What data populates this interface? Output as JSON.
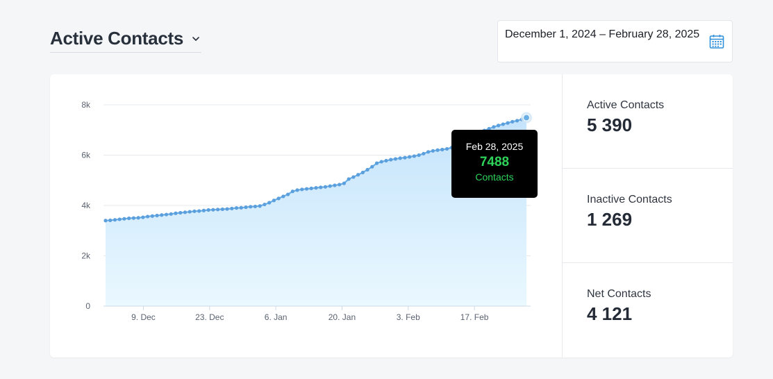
{
  "header": {
    "title": "Active Contacts",
    "date_range": "December 1, 2024 – February 28, 2025"
  },
  "tooltip": {
    "date": "Feb 28, 2025",
    "value": "7488",
    "label": "Contacts"
  },
  "stats": [
    {
      "label": "Active Contacts",
      "value": "5 390"
    },
    {
      "label": "Inactive Contacts",
      "value": "1 269"
    },
    {
      "label": "Net Contacts",
      "value": "4 121"
    }
  ],
  "colors": {
    "line": "#6aaee6",
    "point": "#5b9fdd",
    "area_top": "#c4e3fb",
    "area_bottom": "#eaf8ff",
    "tooltip_value": "#2ed35a"
  },
  "chart_data": {
    "type": "area",
    "x_start": "2024-12-01",
    "x_end": "2025-02-28",
    "ylim": [
      0,
      8000
    ],
    "yticks": [
      0,
      2000,
      4000,
      6000,
      8000
    ],
    "ytick_labels": [
      "0",
      "2k",
      "4k",
      "6k",
      "8k"
    ],
    "xtick_dates": [
      "2024-12-09",
      "2024-12-23",
      "2025-01-06",
      "2025-01-20",
      "2025-02-03",
      "2025-02-17"
    ],
    "xtick_labels": [
      "9. Dec",
      "23. Dec",
      "6. Jan",
      "20. Jan",
      "3. Feb",
      "17. Feb"
    ],
    "grid": true,
    "series": [
      {
        "name": "Contacts",
        "values": [
          3400,
          3410,
          3430,
          3450,
          3470,
          3490,
          3500,
          3510,
          3530,
          3560,
          3580,
          3600,
          3620,
          3640,
          3660,
          3690,
          3710,
          3730,
          3750,
          3770,
          3780,
          3800,
          3820,
          3830,
          3840,
          3850,
          3860,
          3880,
          3900,
          3910,
          3930,
          3950,
          3960,
          3980,
          4040,
          4110,
          4200,
          4280,
          4360,
          4440,
          4560,
          4610,
          4640,
          4660,
          4680,
          4700,
          4720,
          4740,
          4770,
          4800,
          4830,
          4880,
          5050,
          5130,
          5220,
          5310,
          5420,
          5540,
          5680,
          5740,
          5780,
          5820,
          5850,
          5880,
          5900,
          5930,
          5960,
          6000,
          6060,
          6130,
          6170,
          6200,
          6220,
          6250,
          6300,
          6450,
          6530,
          6600,
          6670,
          6750,
          6860,
          6980,
          7050,
          7120,
          7180,
          7230,
          7280,
          7330,
          7370,
          7420,
          7488
        ]
      }
    ]
  }
}
